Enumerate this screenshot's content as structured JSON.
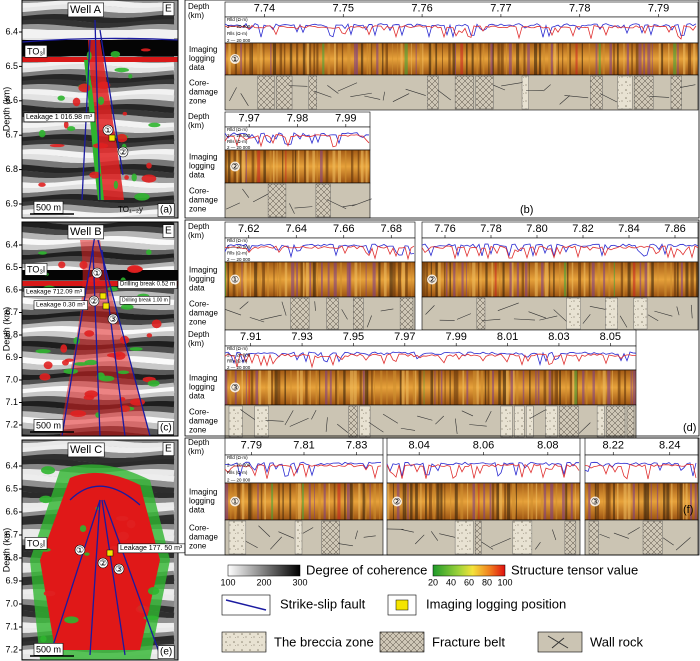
{
  "depth_axis_label": "Depth (km)",
  "row_labels": {
    "depth": [
      "Depth",
      "(km)"
    ],
    "imaging": [
      "Imaging",
      "logging",
      "data"
    ],
    "core": [
      "Core-",
      "damage",
      "zone"
    ]
  },
  "curve_legend": {
    "deep": "Rlld (Ω·m)",
    "deep_range": "2 — 20 000",
    "shallow": "Rlls (Ω·m)",
    "shallow_range": "2 — 20 000"
  },
  "panel_a": {
    "well": "Well A",
    "formation": "E",
    "horizon": "TO₃l",
    "base": "TO₁₋₂y",
    "leakage": "Leakage 1 016.98 m³",
    "markers": [
      "①",
      "②"
    ],
    "scale": "500 m",
    "label": "(a)",
    "depth_ticks": [
      "6.4",
      "6.5",
      "6.6",
      "6.7",
      "6.8",
      "6.9"
    ]
  },
  "panel_c": {
    "well": "Well B",
    "formation": "E",
    "horizon": "TO₃l",
    "leakage_1": "Leakage 712.09 m³",
    "leakage_2": "Leakage 0.30 m³",
    "break_1": "Drilling break 0.52 m",
    "break_2": "Drilling break 1.00 m",
    "markers": [
      "①",
      "②",
      "③"
    ],
    "scale": "500 m",
    "label": "(c)",
    "depth_ticks": [
      "6.4",
      "6.5",
      "6.6",
      "6.7",
      "6.8",
      "6.9",
      "7.0",
      "7.1",
      "7.2"
    ]
  },
  "panel_e": {
    "well": "Well C",
    "formation": "E",
    "horizon": "TO₃l",
    "leakage": "Leakage 177. 50 m³",
    "markers": [
      "①",
      "②",
      "③"
    ],
    "scale": "500 m",
    "label": "(e)",
    "depth_ticks": [
      "6.4",
      "6.5",
      "6.6",
      "6.7",
      "6.8",
      "6.9",
      "7.0",
      "7.1",
      "7.2"
    ]
  },
  "panel_b": {
    "label": "(b)",
    "strips": [
      {
        "ticks": [
          "7.74",
          "7.75",
          "7.76",
          "7.77",
          "7.78",
          "7.79"
        ],
        "marker": "①"
      },
      {
        "ticks": [
          "7.97",
          "7.98",
          "7.99"
        ],
        "marker": "②"
      }
    ]
  },
  "panel_d": {
    "label": "(d)",
    "strips": [
      {
        "ticks": [
          "7.62",
          "7.64",
          "7.66",
          "7.68"
        ],
        "marker": "①"
      },
      {
        "ticks": [
          "7.76",
          "7.78",
          "7.80",
          "7.82",
          "7.84",
          "7.86"
        ],
        "marker": "②"
      },
      {
        "ticks": [
          "7.91",
          "7.93",
          "7.95",
          "7.97",
          "7.99",
          "8.01",
          "8.03",
          "8.05"
        ],
        "marker": "③"
      }
    ]
  },
  "panel_f": {
    "label": "(f)",
    "strips": [
      {
        "ticks": [
          "7.79",
          "7.81",
          "7.83"
        ],
        "marker": "①"
      },
      {
        "ticks": [
          "8.04",
          "8.06",
          "8.08"
        ],
        "marker": "②"
      },
      {
        "ticks": [
          "8.22",
          "8.24"
        ],
        "marker": "③"
      }
    ]
  },
  "legend": {
    "coherence_ticks": [
      "100",
      "200",
      "300"
    ],
    "coherence_title": "Degree of coherence",
    "tensor_ticks": [
      "20",
      "40",
      "60",
      "80",
      "100"
    ],
    "tensor_title": "Structure tensor value",
    "fault": "Strike-slip fault",
    "position": "Imaging logging position",
    "breccia": "The breccia zone",
    "fracture": "Fracture belt",
    "wall_rock": "Wall rock"
  }
}
